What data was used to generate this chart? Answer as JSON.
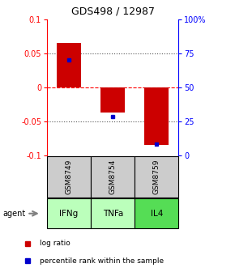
{
  "title": "GDS498 / 12987",
  "samples": [
    "GSM8749",
    "GSM8754",
    "GSM8759"
  ],
  "agents": [
    "IFNg",
    "TNFa",
    "IL4"
  ],
  "log_ratios": [
    0.065,
    -0.038,
    -0.085
  ],
  "percentile_ranks": [
    0.7,
    0.28,
    0.08
  ],
  "bar_color": "#cc0000",
  "percentile_color": "#0000cc",
  "ylim_left": [
    -0.1,
    0.1
  ],
  "ylim_right": [
    0,
    100
  ],
  "bar_width": 0.55,
  "agent_colors": [
    "#bbffbb",
    "#bbffbb",
    "#55dd55"
  ],
  "sample_bg_color": "#cccccc",
  "grid_dotted": [
    -0.05,
    0.05
  ],
  "grid_dashed_zero": 0.0,
  "right_ticks": [
    0,
    25,
    50,
    75,
    100
  ],
  "right_tick_labels": [
    "0",
    "25",
    "50",
    "75",
    "100%"
  ],
  "left_ticks": [
    -0.1,
    -0.05,
    0,
    0.05,
    0.1
  ],
  "left_tick_labels": [
    "-0.1",
    "-0.05",
    "0",
    "0.05",
    "0.1"
  ]
}
